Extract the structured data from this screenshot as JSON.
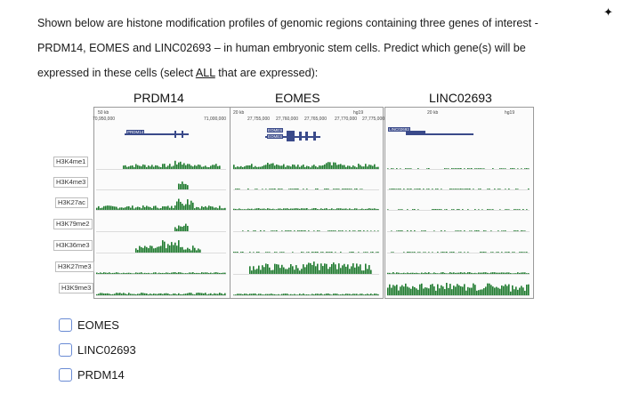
{
  "question": {
    "line1": "Shown below are histone modification profiles of genomic regions containing three genes of interest -",
    "line2": "PRDM14, EOMES and LINC02693 – in human embryonic stem cells.  Predict which gene(s) will be",
    "line3_pre": "expressed in these cells (select ",
    "line3_underline": "ALL",
    "line3_post": " that are expressed):"
  },
  "genes": [
    "PRDM14",
    "EOMES",
    "LINC02693"
  ],
  "tracks": [
    "H3K4me1",
    "H3K4me3",
    "H3K27ac",
    "H3K79me2",
    "H3K36me3",
    "H3K27me3",
    "H3K9me3"
  ],
  "coords": {
    "prdm14": [
      "50 kb",
      "70,950,000",
      "71,000,000"
    ],
    "eomes": [
      "20 kb",
      "27,755,000",
      "27,760,000",
      "27,765,000",
      "27,770,000",
      "27,775,000",
      "hg19"
    ],
    "linc": [
      "20 kb",
      "hg19"
    ]
  },
  "gene_labels": {
    "prdm14": "PRDM14",
    "eomes_a": "EOMES",
    "eomes_b": "EOMES",
    "linc": "LINC02693"
  },
  "options": [
    "EOMES",
    "LINC02693",
    "PRDM14"
  ],
  "colors": {
    "signal": "#1f7a2e",
    "gene": "#3a4a8a",
    "checkbox_border": "#6a8bd4"
  }
}
